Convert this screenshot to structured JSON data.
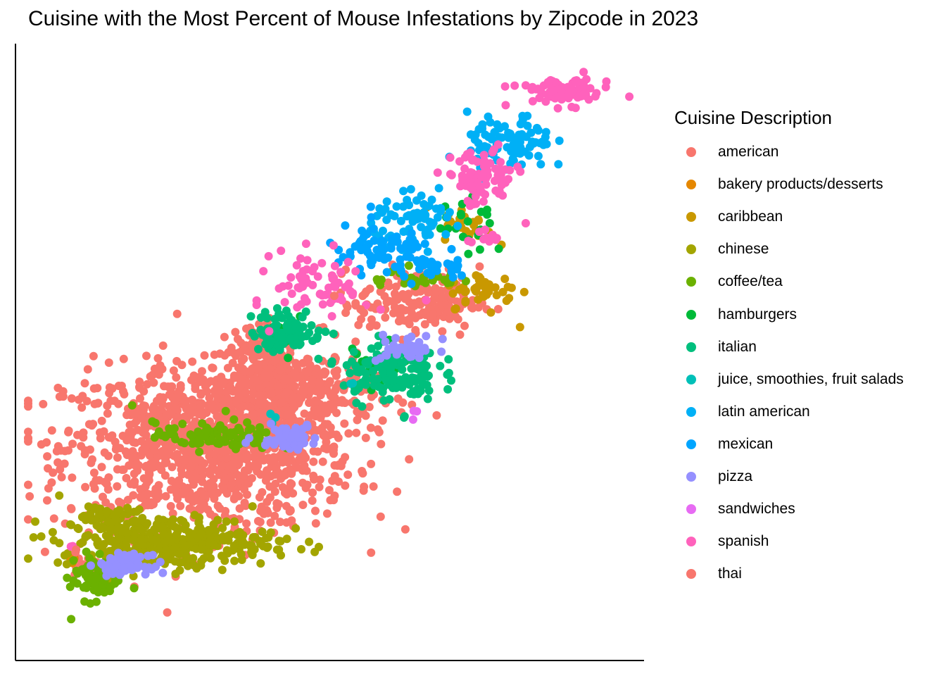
{
  "chart_data": {
    "type": "scatter",
    "title": "Cuisine with the Most Percent of Mouse Infestations by Zipcode in 2023",
    "xlabel": "",
    "ylabel": "",
    "axes_visible": "left and bottom axis lines only, no ticks or tick labels",
    "grid": false,
    "legend": {
      "title": "Cuisine Description",
      "position": "right"
    },
    "series": [
      {
        "name": "american",
        "color": "#F8766D",
        "clusters": [
          {
            "x": 0.3,
            "y": 0.33,
            "sx": 0.12,
            "sy": 0.07,
            "n": 1100
          },
          {
            "x": 0.43,
            "y": 0.42,
            "sx": 0.07,
            "sy": 0.04,
            "n": 350
          },
          {
            "x": 0.38,
            "y": 0.49,
            "sx": 0.03,
            "sy": 0.03,
            "n": 90
          },
          {
            "x": 0.65,
            "y": 0.58,
            "sx": 0.05,
            "sy": 0.03,
            "n": 170
          },
          {
            "x": 0.1,
            "y": 0.13,
            "sx": 0.02,
            "sy": 0.01,
            "n": 25
          }
        ]
      },
      {
        "name": "bakery products/desserts",
        "color": "#E58700",
        "clusters": [
          {
            "x": 0.07,
            "y": 0.14,
            "sx": 0.004,
            "sy": 0.006,
            "n": 5
          }
        ]
      },
      {
        "name": "caribbean",
        "color": "#C99800",
        "clusters": [
          {
            "x": 0.76,
            "y": 0.6,
            "sx": 0.03,
            "sy": 0.015,
            "n": 45
          },
          {
            "x": 0.73,
            "y": 0.71,
            "sx": 0.02,
            "sy": 0.015,
            "n": 22
          },
          {
            "x": 0.82,
            "y": 0.54,
            "sx": 0.002,
            "sy": 0.002,
            "n": 1
          }
        ]
      },
      {
        "name": "chinese",
        "color": "#A3A500",
        "clusters": [
          {
            "x": 0.23,
            "y": 0.17,
            "sx": 0.09,
            "sy": 0.022,
            "n": 340
          },
          {
            "x": 0.13,
            "y": 0.21,
            "sx": 0.02,
            "sy": 0.015,
            "n": 50
          }
        ]
      },
      {
        "name": "coffee/tea",
        "color": "#6BB100",
        "clusters": [
          {
            "x": 0.11,
            "y": 0.11,
            "sx": 0.02,
            "sy": 0.02,
            "n": 80
          },
          {
            "x": 0.31,
            "y": 0.35,
            "sx": 0.05,
            "sy": 0.012,
            "n": 90
          },
          {
            "x": 0.64,
            "y": 0.62,
            "sx": 0.04,
            "sy": 0.01,
            "n": 30
          },
          {
            "x": 0.07,
            "y": 0.04,
            "sx": 0.002,
            "sy": 0.002,
            "n": 1
          },
          {
            "x": 0.17,
            "y": 0.4,
            "sx": 0.002,
            "sy": 0.002,
            "n": 1
          }
        ]
      },
      {
        "name": "hamburgers",
        "color": "#00BA38",
        "clusters": [
          {
            "x": 0.74,
            "y": 0.72,
            "sx": 0.025,
            "sy": 0.03,
            "n": 22
          },
          {
            "x": 0.58,
            "y": 0.47,
            "sx": 0.03,
            "sy": 0.02,
            "n": 18
          },
          {
            "x": 0.43,
            "y": 0.53,
            "sx": 0.02,
            "sy": 0.015,
            "n": 12
          }
        ]
      },
      {
        "name": "italian",
        "color": "#00BF7D",
        "clusters": [
          {
            "x": 0.43,
            "y": 0.53,
            "sx": 0.03,
            "sy": 0.018,
            "n": 90
          },
          {
            "x": 0.6,
            "y": 0.46,
            "sx": 0.04,
            "sy": 0.025,
            "n": 140
          }
        ]
      },
      {
        "name": "juice, smoothies, fruit salads",
        "color": "#00C0B8",
        "clusters": [
          {
            "x": 0.41,
            "y": 0.38,
            "sx": 0.005,
            "sy": 0.004,
            "n": 3
          },
          {
            "x": 0.54,
            "y": 0.44,
            "sx": 0.005,
            "sy": 0.004,
            "n": 2
          }
        ]
      },
      {
        "name": "latin american",
        "color": "#00B0F6",
        "clusters": [
          {
            "x": 0.8,
            "y": 0.85,
            "sx": 0.035,
            "sy": 0.025,
            "n": 90
          },
          {
            "x": 0.65,
            "y": 0.72,
            "sx": 0.04,
            "sy": 0.02,
            "n": 70
          }
        ]
      },
      {
        "name": "mexican",
        "color": "#00A5FF",
        "clusters": [
          {
            "x": 0.59,
            "y": 0.66,
            "sx": 0.05,
            "sy": 0.025,
            "n": 80
          },
          {
            "x": 0.69,
            "y": 0.64,
            "sx": 0.02,
            "sy": 0.01,
            "n": 20
          }
        ]
      },
      {
        "name": "pizza",
        "color": "#9590FF",
        "clusters": [
          {
            "x": 0.43,
            "y": 0.35,
            "sx": 0.025,
            "sy": 0.01,
            "n": 70
          },
          {
            "x": 0.16,
            "y": 0.13,
            "sx": 0.02,
            "sy": 0.008,
            "n": 70
          },
          {
            "x": 0.63,
            "y": 0.5,
            "sx": 0.025,
            "sy": 0.012,
            "n": 40
          }
        ]
      },
      {
        "name": "sandwiches",
        "color": "#E76BF3",
        "clusters": [
          {
            "x": 0.64,
            "y": 0.39,
            "sx": 0.01,
            "sy": 0.005,
            "n": 3
          }
        ]
      },
      {
        "name": "spanish",
        "color": "#FF62BC",
        "clusters": [
          {
            "x": 0.89,
            "y": 0.94,
            "sx": 0.04,
            "sy": 0.012,
            "n": 75
          },
          {
            "x": 0.75,
            "y": 0.79,
            "sx": 0.03,
            "sy": 0.025,
            "n": 80
          },
          {
            "x": 0.49,
            "y": 0.61,
            "sx": 0.04,
            "sy": 0.03,
            "n": 70
          },
          {
            "x": 0.76,
            "y": 0.69,
            "sx": 0.015,
            "sy": 0.01,
            "n": 15
          },
          {
            "x": 0.07,
            "y": 0.16,
            "sx": 0.003,
            "sy": 0.003,
            "n": 2
          }
        ]
      },
      {
        "name": "thai",
        "color": "#F8766D",
        "clusters": [
          {
            "x": 0.53,
            "y": 0.57,
            "sx": 0.02,
            "sy": 0.01,
            "n": 5
          },
          {
            "x": 0.08,
            "y": 0.16,
            "sx": 0.003,
            "sy": 0.003,
            "n": 2
          }
        ]
      }
    ]
  }
}
